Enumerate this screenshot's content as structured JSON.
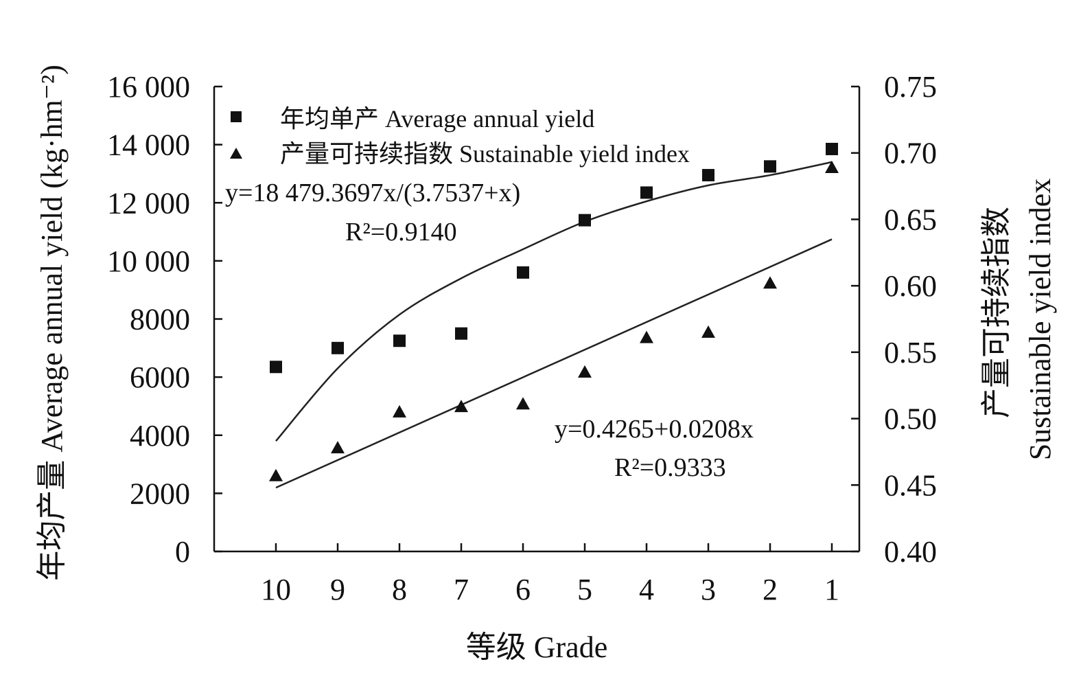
{
  "chart_data": {
    "type": "scatter",
    "x_categories": [
      "10",
      "9",
      "8",
      "7",
      "6",
      "5",
      "4",
      "3",
      "2",
      "1"
    ],
    "xlabel": "等级 Grade",
    "ylabel_left": "年均产量 Average annual yield (kg·hm⁻²)",
    "ylabel_right_cn": "产量可持续指数",
    "ylabel_right_en": "Sustainable yield index",
    "y_left": {
      "range": [
        0,
        16000
      ],
      "ticks": [
        0,
        2000,
        4000,
        6000,
        8000,
        10000,
        12000,
        14000,
        16000
      ],
      "tick_labels": [
        "0",
        "2000",
        "4000",
        "6000",
        "8000",
        "10 000",
        "12 000",
        "14 000",
        "16 000"
      ]
    },
    "y_right": {
      "range": [
        0.4,
        0.75
      ],
      "ticks": [
        0.4,
        0.45,
        0.5,
        0.55,
        0.6,
        0.65,
        0.7,
        0.75
      ],
      "tick_labels": [
        "0.40",
        "0.45",
        "0.50",
        "0.55",
        "0.60",
        "0.65",
        "0.70",
        "0.75"
      ]
    },
    "series": [
      {
        "name": "年均单产 Average annual yield",
        "marker": "square",
        "axis": "left",
        "x": [
          10,
          9,
          8,
          7,
          6,
          5,
          4,
          3,
          2,
          1
        ],
        "values": [
          6350,
          7000,
          7250,
          7500,
          9600,
          11400,
          12350,
          12950,
          13250,
          13850
        ]
      },
      {
        "name": "产量可持续指数 Sustainable yield index",
        "marker": "triangle",
        "axis": "right",
        "x": [
          10,
          9,
          8,
          7,
          6,
          5,
          4,
          3,
          2,
          1
        ],
        "values": [
          0.457,
          0.478,
          0.505,
          0.509,
          0.511,
          0.535,
          0.561,
          0.565,
          0.602,
          0.689
        ]
      }
    ],
    "fits": [
      {
        "series": 0,
        "equation": "y=18 479.3697x/(3.7537+x)",
        "r2": "R²=0.9140",
        "curve_x": [
          10,
          9,
          8,
          7,
          6,
          5,
          4,
          3,
          2,
          1
        ],
        "curve_y": [
          3800,
          6300,
          8150,
          9400,
          10400,
          11350,
          12050,
          12600,
          12950,
          13400
        ]
      },
      {
        "series": 1,
        "equation": "y=0.4265+0.0208x",
        "r2": "R²=0.9333",
        "curve_x": [
          10,
          1
        ],
        "curve_y": [
          0.448,
          0.635
        ]
      }
    ],
    "legend_position": "top-left",
    "grid": false
  }
}
